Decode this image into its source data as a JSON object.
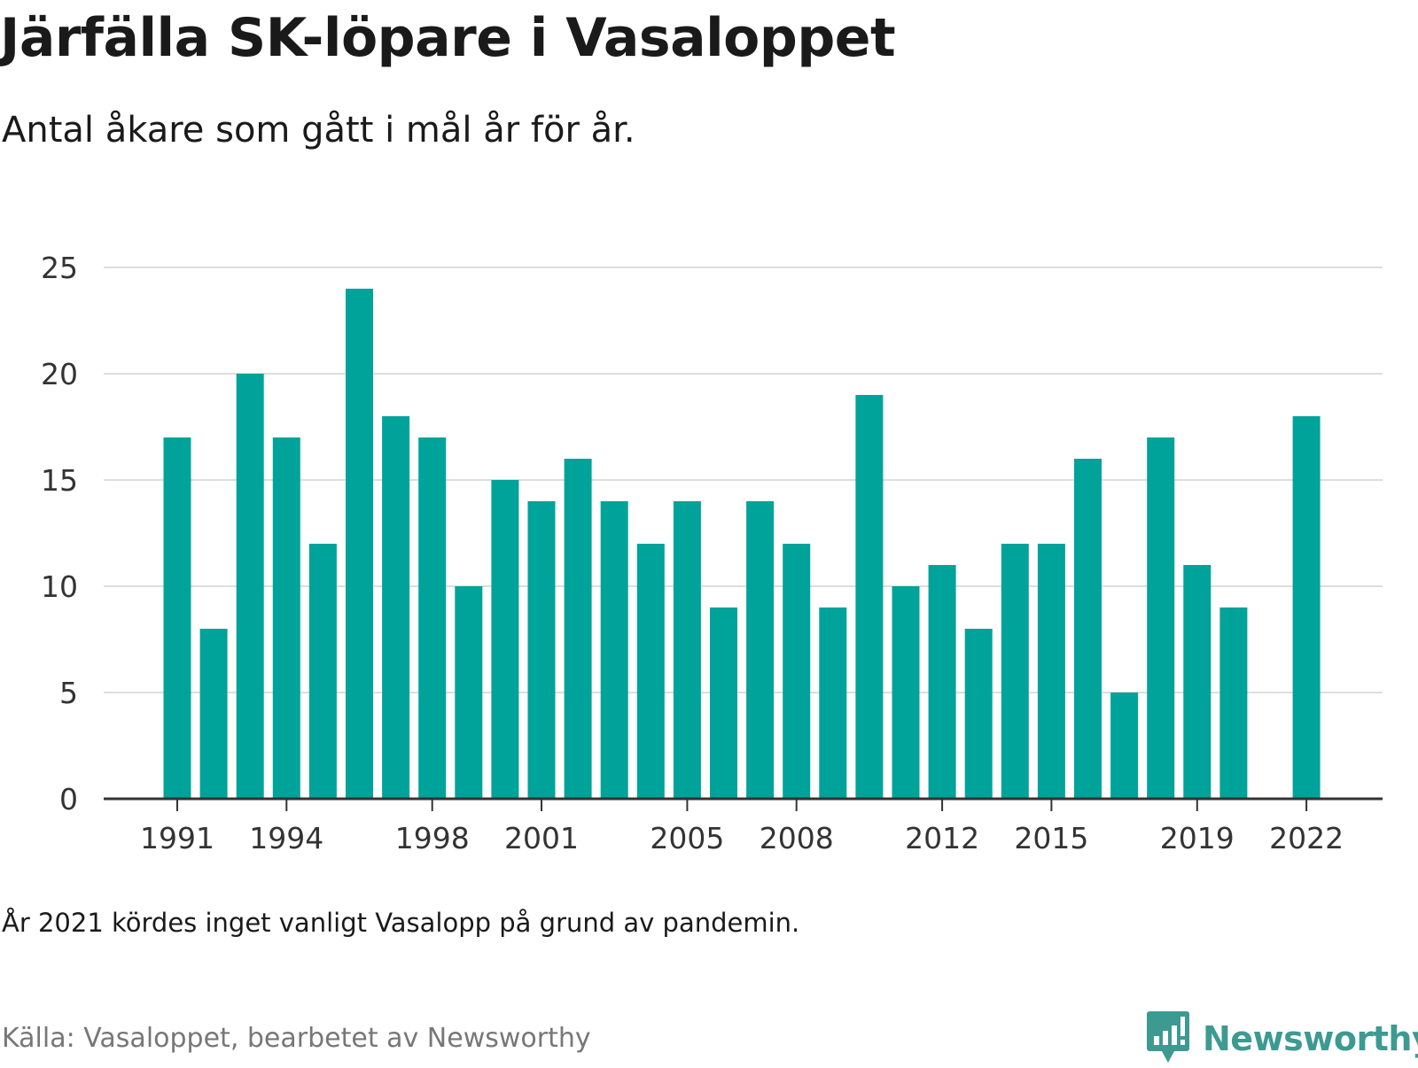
{
  "header": {
    "title": "Järfälla SK-löpare i Vasaloppet",
    "subtitle": "Antal åkare som gått i mål år för år."
  },
  "footer": {
    "note": "År 2021 kördes inget vanligt Vasalopp på grund av pandemin.",
    "source": "Källa: Vasaloppet, bearbetet av Newsworthy",
    "brand": "Newsworthy",
    "brand_icon": "newsworthy-logo-icon"
  },
  "colors": {
    "bar": "#00a39a",
    "grid": "#dddddd",
    "axis": "#333333",
    "brand": "#3d9a91"
  },
  "chart_data": {
    "type": "bar",
    "title": "Järfälla SK-löpare i Vasaloppet",
    "subtitle": "Antal åkare som gått i mål år för år.",
    "x": [
      1991,
      1992,
      1993,
      1994,
      1995,
      1996,
      1997,
      1998,
      1999,
      2000,
      2001,
      2002,
      2003,
      2004,
      2005,
      2006,
      2007,
      2008,
      2009,
      2010,
      2011,
      2012,
      2013,
      2014,
      2015,
      2016,
      2017,
      2018,
      2019,
      2020,
      2021,
      2022
    ],
    "values": [
      17,
      8,
      20,
      17,
      12,
      24,
      18,
      17,
      10,
      15,
      14,
      16,
      14,
      12,
      14,
      9,
      14,
      12,
      9,
      19,
      10,
      11,
      8,
      12,
      12,
      16,
      5,
      17,
      11,
      9,
      null,
      18
    ],
    "xticks": [
      "1991",
      "1994",
      "1998",
      "2001",
      "2005",
      "2008",
      "2012",
      "2015",
      "2019",
      "2022"
    ],
    "yticks": [
      0,
      5,
      10,
      15,
      20,
      25
    ],
    "ylim": [
      0,
      25
    ],
    "grid": true,
    "legend": "none"
  }
}
